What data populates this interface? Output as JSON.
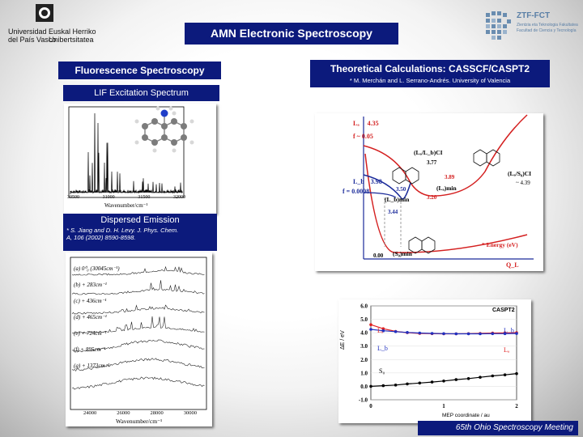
{
  "header": {
    "title": "AMN Electronic Spectroscopy",
    "logo_left": {
      "line1": "Universidad",
      "line2": "del País Vasco",
      "line3": "Euskal Herriko",
      "line4": "Unibertsitatea"
    },
    "logo_right": {
      "name": "ZTF-FCT",
      "line1": "Zientzia eta Teknologia Fakultatea",
      "line2": "Facultad de Ciencia y Tecnología"
    }
  },
  "left": {
    "section_title": "Fluorescence Spectroscopy",
    "lif_title": "LIF Excitation Spectrum",
    "lif_xlabel": "Wavenumber/cm⁻¹",
    "lif_ticks": [
      "30500",
      "31000",
      "31500",
      "32000"
    ],
    "dispersed_title": "Dispersed Emission",
    "reference_line1": "* S. Jiang and D. H. Levy. J. Phys. Chem.",
    "reference_line2": "A, 106 (2002) 8590-8598.",
    "dispersed_xlabel": "Wavenumber/cm⁻¹",
    "dispersed_ticks": [
      "24000",
      "26000",
      "28000",
      "30000"
    ],
    "traces": [
      "(a) 0⁰₀ (30045cm⁻¹)",
      "(b) + 283cm⁻¹",
      "(c) + 436cm⁻¹",
      "(d) + 465cm⁻¹",
      "(e) + 724cm⁻¹",
      "(f) + 895cm⁻¹",
      "(g) + 1373cm⁻¹"
    ]
  },
  "right": {
    "section_title": "Theoretical Calculations: CASSCF/CASPT2",
    "authors": "* M. Merchán and L. Serrano-Andrés. University of Valencia",
    "pes": {
      "La": "Lₐ",
      "La_energy": "4.35",
      "f_upper": "f ~ 0.05",
      "Lb": "L_b",
      "Lb_energy": "3.98",
      "f_lower": "f = 0.0008",
      "ci1": "(Lₐ/L_b)CI",
      "ci1_energy": "3.77",
      "ci2": "(Lₐ/S₀)CI",
      "ci2_energy": "~ 4.39",
      "la_min": "(Lₐ)min",
      "la_min_energy": "3.20",
      "lb_min": "(L_b)min",
      "lb_min_energy": "3.50",
      "val_344": "3.44",
      "val_389": "3.89",
      "s0_min": "(S₀)min",
      "s0_energy": "0.00",
      "energy_label": "* Energy (eV)",
      "axis": "Q_L"
    },
    "mep_chart": {
      "chart_data": {
        "type": "line",
        "title": "CASPT2",
        "xlabel": "MEP coordinate / au",
        "ylabel": "ΔE / eV",
        "ylim": [
          -1.0,
          6.0
        ],
        "xlim": [
          0,
          2
        ],
        "yticks": [
          "6.0",
          "5.0",
          "4.0",
          "3.0",
          "2.0",
          "1.0",
          "0.0",
          "-1.0"
        ],
        "xticks": [
          "0",
          "1",
          "2"
        ],
        "series": [
          {
            "name": "La",
            "x": [
              0,
              0.17,
              0.34,
              0.5,
              0.67,
              0.84,
              1.0,
              1.17,
              1.34,
              1.5,
              1.67,
              1.84,
              2.0
            ],
            "values": [
              4.6,
              4.3,
              4.1,
              4.0,
              3.95,
              3.93,
              3.92,
              3.92,
              3.93,
              3.95,
              3.97,
              3.99,
              4.0
            ]
          },
          {
            "name": "Lb",
            "x": [
              0,
              0.17,
              0.34,
              0.5,
              0.67,
              0.84,
              1.0,
              1.17,
              1.34,
              1.5,
              1.67,
              1.84,
              2.0
            ],
            "values": [
              4.25,
              4.15,
              4.08,
              4.02,
              3.98,
              3.95,
              3.93,
              3.92,
              3.92,
              3.92,
              3.93,
              3.93,
              3.94
            ]
          },
          {
            "name": "S0",
            "x": [
              0,
              0.17,
              0.34,
              0.5,
              0.67,
              0.84,
              1.0,
              1.17,
              1.34,
              1.5,
              1.67,
              1.84,
              2.0
            ],
            "values": [
              0.0,
              0.05,
              0.1,
              0.18,
              0.25,
              0.32,
              0.4,
              0.5,
              0.58,
              0.68,
              0.78,
              0.86,
              0.95
            ]
          }
        ],
        "labels": {
          "La_left": "Lₐ",
          "Lb_left": "L_b",
          "Lb_right": "L_b",
          "La_right": "Lₐ",
          "S0": "S₀"
        },
        "colors": {
          "La": "#e02020",
          "Lb": "#2030c0",
          "S0": "#000000"
        }
      }
    }
  },
  "footer": "65th Ohio Spectroscopy Meeting",
  "colors": {
    "navy": "#0c1a7c",
    "red": "#d42020",
    "blue": "#1a2a9a"
  }
}
